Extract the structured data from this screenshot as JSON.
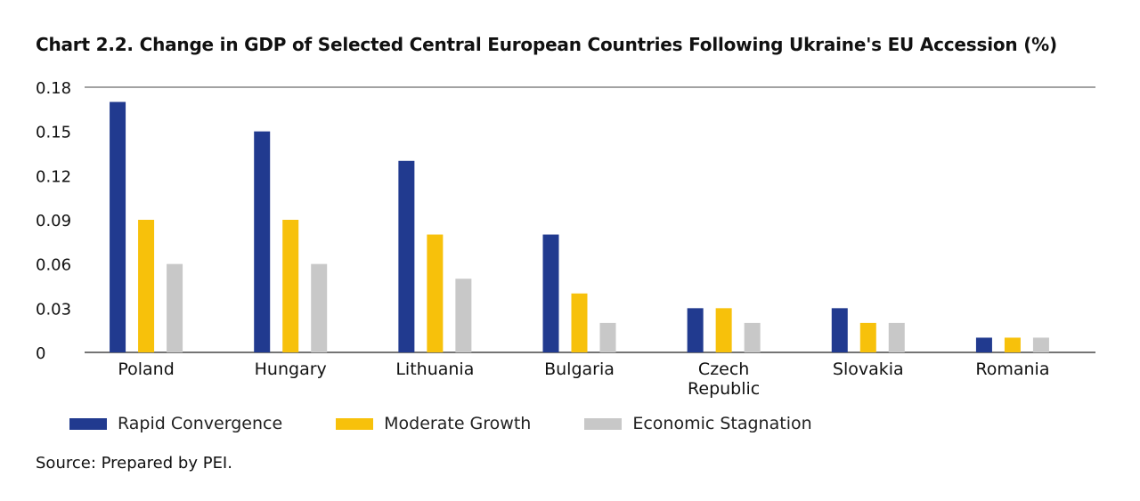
{
  "title": "Chart 2.2.  Change in GDP of Selected Central European Countries Following Ukraine's EU Accession (%)",
  "source": "Source: Prepared by PEI.",
  "chart_data": {
    "type": "bar",
    "title": "Chart 2.2.  Change in GDP of Selected Central European Countries Following Ukraine's EU Accession (%)",
    "xlabel": "",
    "ylabel": "",
    "categories": [
      [
        "Poland"
      ],
      [
        "Hungary"
      ],
      [
        "Lithuania"
      ],
      [
        "Bulgaria"
      ],
      [
        "Czech",
        "Republic"
      ],
      [
        "Slovakia"
      ],
      [
        "Romania"
      ]
    ],
    "series": [
      {
        "name": "Rapid Convergence",
        "color": "#213a8f",
        "values": [
          0.17,
          0.15,
          0.13,
          0.08,
          0.03,
          0.03,
          0.01
        ]
      },
      {
        "name": "Moderate Growth",
        "color": "#f7c10b",
        "values": [
          0.09,
          0.09,
          0.08,
          0.04,
          0.03,
          0.02,
          0.01
        ]
      },
      {
        "name": "Economic Stagnation",
        "color": "#c8c8c8",
        "values": [
          0.06,
          0.06,
          0.05,
          0.02,
          0.02,
          0.02,
          0.01
        ]
      }
    ],
    "yticks": [
      "0",
      "0.03",
      "0.06",
      "0.09",
      "0.12",
      "0.15",
      "0.18"
    ],
    "ylim": [
      0,
      0.18
    ],
    "grid": false,
    "legend_position": "bottom-left"
  }
}
